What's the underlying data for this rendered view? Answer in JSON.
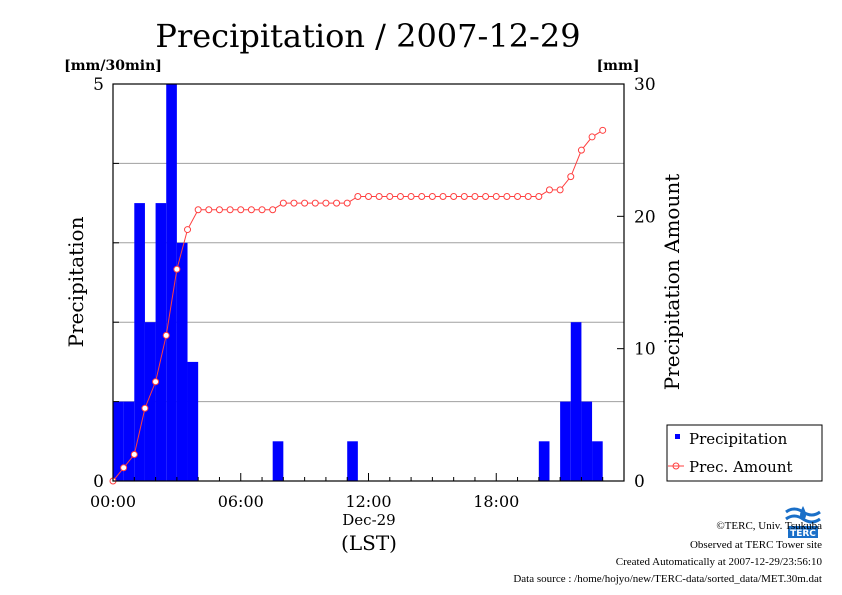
{
  "chart_data": {
    "type": "bar",
    "title": "Precipitation / 2007-12-29",
    "ylabel_left": "Precipitation",
    "ylabel_right": "Precipitation Amount",
    "unit_left": "[mm/30min]",
    "unit_right": "[mm]",
    "ylim_left": [
      0,
      5
    ],
    "ylim_right": [
      0,
      30
    ],
    "xlim_hours": [
      0,
      24
    ],
    "x_ticks": [
      "00:00",
      "06:00",
      "12:00",
      "18:00"
    ],
    "x_date_label": "Dec-29",
    "x_tz_label": "(LST)",
    "left_tick_labels": [
      "0",
      "5"
    ],
    "right_tick_labels": [
      "0",
      "10",
      "20",
      "30"
    ],
    "grid": true,
    "legend_position": "right",
    "series": [
      {
        "name": "Precipitation",
        "kind": "bar",
        "color": "#0000ff",
        "x_hours": [
          0.0,
          0.5,
          1.0,
          1.5,
          2.0,
          2.5,
          3.0,
          3.5,
          7.5,
          11.0,
          20.0,
          21.0,
          21.5,
          22.0,
          22.5
        ],
        "values": [
          1.0,
          1.0,
          3.5,
          2.0,
          3.5,
          5.0,
          3.0,
          1.5,
          0.5,
          0.5,
          0.5,
          1.0,
          2.0,
          1.0,
          0.5
        ]
      },
      {
        "name": "Prec. Amount",
        "kind": "line",
        "color": "#ff4040",
        "x_hours": [
          0.0,
          0.5,
          1.0,
          1.5,
          2.0,
          2.5,
          3.0,
          3.5,
          4.0,
          4.5,
          5.0,
          5.5,
          6.0,
          6.5,
          7.0,
          7.5,
          8.0,
          8.5,
          9.0,
          9.5,
          10.0,
          10.5,
          11.0,
          11.5,
          12.0,
          12.5,
          13.0,
          13.5,
          14.0,
          14.5,
          15.0,
          15.5,
          16.0,
          16.5,
          17.0,
          17.5,
          18.0,
          18.5,
          19.0,
          19.5,
          20.0,
          20.5,
          21.0,
          21.5,
          22.0,
          22.5,
          23.0
        ],
        "values": [
          0.0,
          1.0,
          2.0,
          5.5,
          7.5,
          11.0,
          16.0,
          19.0,
          20.5,
          20.5,
          20.5,
          20.5,
          20.5,
          20.5,
          20.5,
          20.5,
          21.0,
          21.0,
          21.0,
          21.0,
          21.0,
          21.0,
          21.0,
          21.5,
          21.5,
          21.5,
          21.5,
          21.5,
          21.5,
          21.5,
          21.5,
          21.5,
          21.5,
          21.5,
          21.5,
          21.5,
          21.5,
          21.5,
          21.5,
          21.5,
          21.5,
          22.0,
          22.0,
          23.0,
          25.0,
          26.0,
          26.5
        ]
      }
    ]
  },
  "footer": {
    "copyright": "©TERC, Univ. Tsukuba",
    "observed": "Observed at TERC Tower site",
    "created": "Created Automatically at 2007-12-29/23:56:10",
    "source": "Data source : /home/hojyo/new/TERC-data/sorted_data/MET.30m.dat"
  },
  "logo": {
    "text": "TERC",
    "color": "#1a6fc8"
  }
}
